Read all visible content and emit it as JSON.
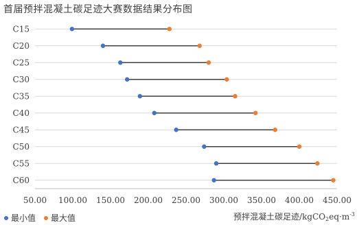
{
  "title": "首届预拌混凝土碳足迹大赛数据结果分布图",
  "legend": {
    "min_label": "最小值",
    "max_label": "最大值"
  },
  "xlabel": {
    "prefix": "预拌混凝土碳足迹/kgCO",
    "sub": "2",
    "mid": "eq·m",
    "sup": "-3"
  },
  "colors": {
    "min": "#4472C4",
    "max": "#ED7D31",
    "line": "#404040",
    "grid": "#D9D9D9"
  },
  "chart_data": {
    "type": "dumbbell",
    "categories": [
      "C15",
      "C20",
      "C25",
      "C30",
      "C35",
      "C40",
      "C45",
      "C50",
      "C55",
      "C60"
    ],
    "series": [
      {
        "name": "最小值",
        "values": [
          99,
          140,
          163,
          172,
          189,
          208,
          237,
          274,
          290,
          287
        ]
      },
      {
        "name": "最大值",
        "values": [
          228,
          268,
          280,
          304,
          315,
          342,
          368,
          400,
          424,
          445
        ]
      }
    ],
    "xlim": [
      50,
      450
    ],
    "xticks": [
      "50.00",
      "100.00",
      "150.00",
      "200.00",
      "250.00",
      "300.00",
      "350.00",
      "400.00",
      "450.00"
    ],
    "grid": true,
    "legend_position": "bottom-left"
  }
}
